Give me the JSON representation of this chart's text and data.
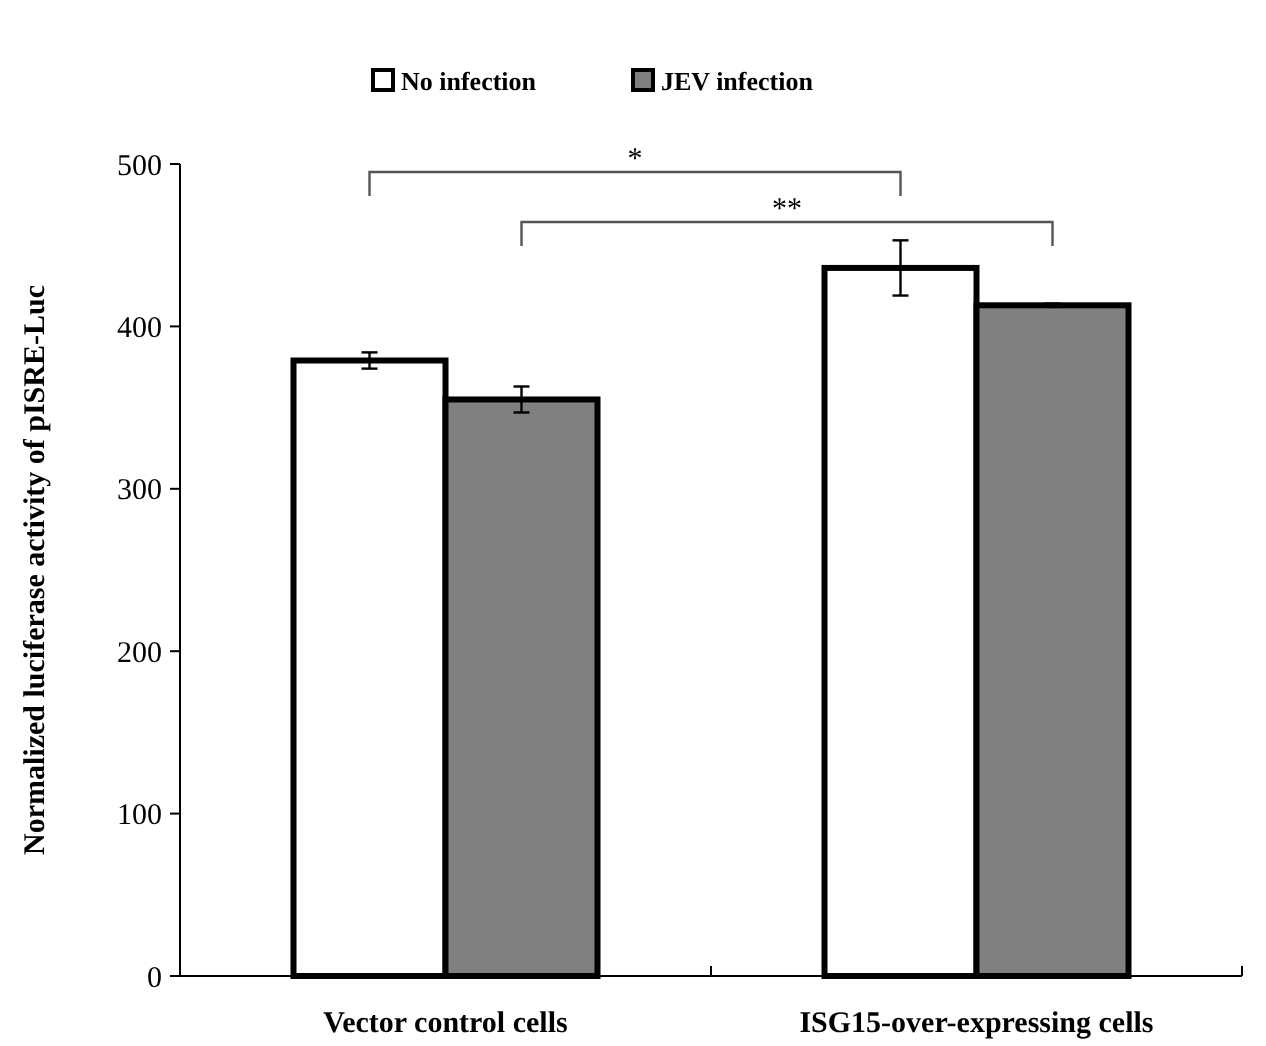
{
  "chart_data": {
    "type": "bar",
    "categories": [
      "Vector control cells",
      "ISG15-over-expressing cells"
    ],
    "ylabel": "Normalized luciferase activity of pISRE-Luc",
    "series": [
      {
        "name": "No infection",
        "color": "#ffffff",
        "values": [
          379,
          436
        ],
        "errors": [
          5,
          17
        ]
      },
      {
        "name": "JEV infection",
        "color": "#808080",
        "values": [
          355,
          413
        ],
        "errors": [
          8,
          1
        ]
      }
    ],
    "ylim": [
      0,
      500
    ],
    "yticks": [
      0,
      100,
      200,
      300,
      400,
      500
    ],
    "grid": false,
    "legend": "top",
    "annotations": [
      "*",
      "**"
    ]
  }
}
